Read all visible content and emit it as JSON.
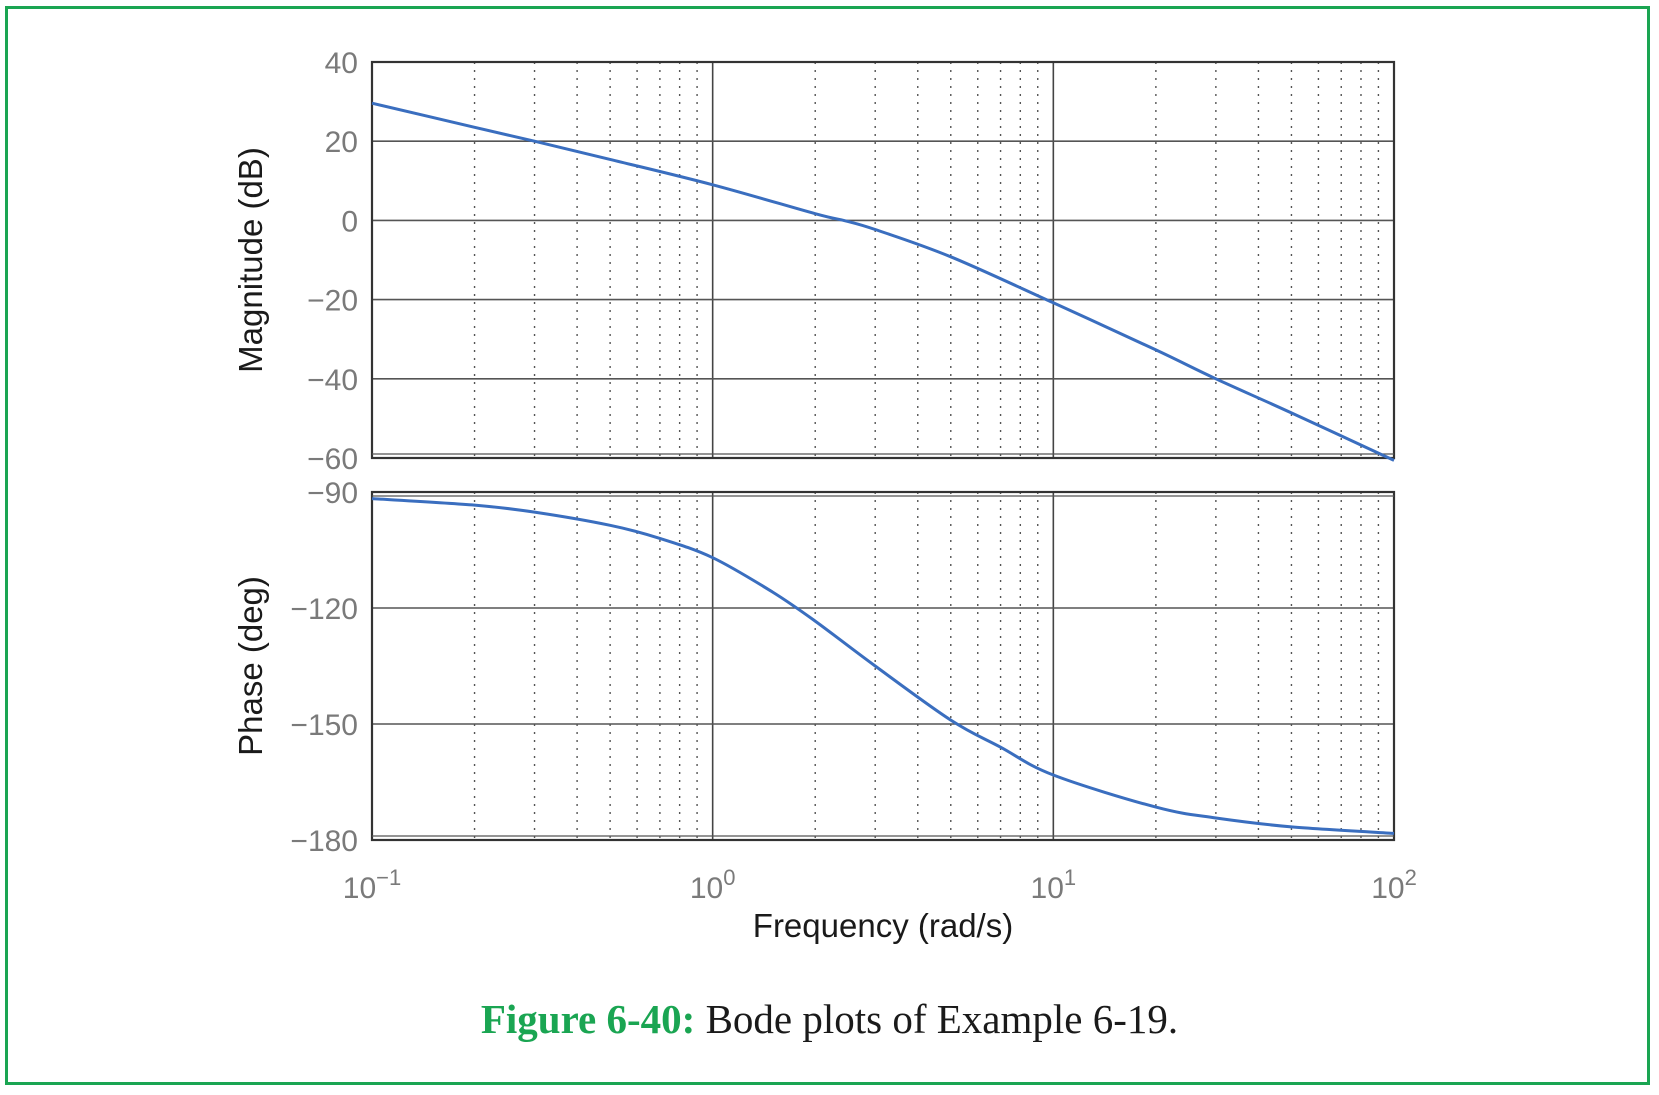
{
  "chart_data": [
    {
      "type": "line",
      "panel": "magnitude",
      "xlabel": "Frequency  (rad/s)",
      "ylabel": "Magnitude (dB)",
      "xscale": "log",
      "xlim": [
        0.1,
        100
      ],
      "ylim": [
        -60,
        40
      ],
      "yticks": [
        "40",
        "20",
        "0",
        "−20",
        "−40",
        "−60"
      ],
      "ytick_values": [
        40,
        20,
        0,
        -20,
        -40,
        -60
      ],
      "grid": true,
      "line_color": "#3a6ebf",
      "series": [
        {
          "x": [
            0.1,
            0.2,
            0.3,
            0.5,
            1,
            2,
            2.45,
            3,
            5,
            10,
            20,
            30,
            50,
            100
          ],
          "values": [
            29.6,
            23.5,
            20.0,
            15.4,
            9.0,
            1.7,
            -0.1,
            -2.3,
            -9.2,
            -20.8,
            -32.7,
            -40.0,
            -48.6,
            -60.6
          ]
        }
      ]
    },
    {
      "type": "line",
      "panel": "phase",
      "xlabel": "Frequency  (rad/s)",
      "ylabel": "Phase (deg)",
      "xscale": "log",
      "xlim": [
        0.1,
        100
      ],
      "ylim": [
        -180,
        -90
      ],
      "yticks": [
        "−90",
        "−120",
        "−150",
        "−180"
      ],
      "ytick_values": [
        -90,
        -120,
        -150,
        -180
      ],
      "xticks": [
        {
          "base": "10",
          "exp": "−1"
        },
        {
          "base": "10",
          "exp": "0"
        },
        {
          "base": "10",
          "exp": "1"
        },
        {
          "base": "10",
          "exp": "2"
        }
      ],
      "xtick_values": [
        0.1,
        1,
        10,
        100
      ],
      "grid": true,
      "line_color": "#3a6ebf",
      "series": [
        {
          "x": [
            0.1,
            0.2,
            0.3,
            0.5,
            0.7,
            1,
            1.5,
            2,
            3,
            5,
            7,
            10,
            20,
            30,
            50,
            100
          ],
          "values": [
            -91.7,
            -93.4,
            -95.2,
            -98.6,
            -102.0,
            -107.0,
            -115.9,
            -123.4,
            -135.0,
            -149.0,
            -156.0,
            -163.2,
            -171.5,
            -174.3,
            -176.6,
            -178.3
          ]
        }
      ]
    }
  ],
  "caption": {
    "figure_number": "Figure 6-40:",
    "text": " Bode plots of Example 6-19."
  }
}
